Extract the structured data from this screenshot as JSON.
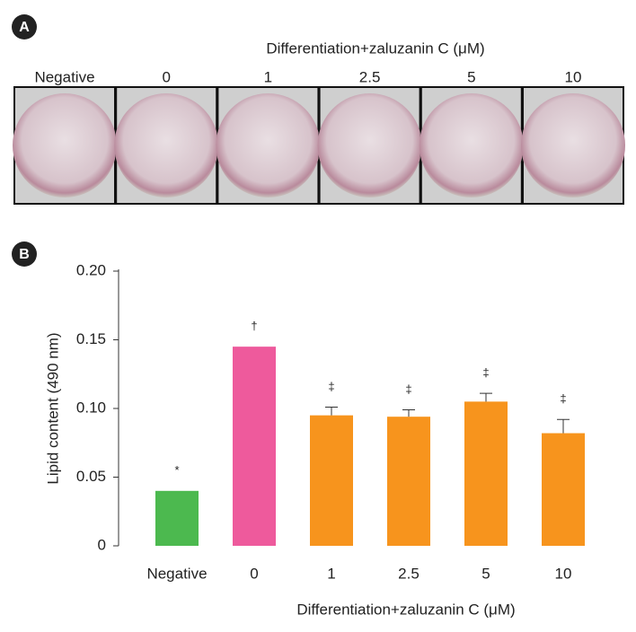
{
  "panel_labels": [
    "A",
    "B"
  ],
  "photos": {
    "header": "Differentiation+zaluzanin C (μM)",
    "labels": [
      "Negative",
      "0",
      "1",
      "2.5",
      "5",
      "10"
    ]
  },
  "chart_data": {
    "type": "bar",
    "categories": [
      "Negative",
      "0",
      "1",
      "2.5",
      "5",
      "10"
    ],
    "values": [
      0.04,
      0.145,
      0.095,
      0.094,
      0.105,
      0.082
    ],
    "errors": [
      null,
      null,
      0.006,
      0.005,
      0.006,
      0.01
    ],
    "markers": [
      "*",
      "†",
      "‡",
      "‡",
      "‡",
      "‡"
    ],
    "colors": [
      "#4cb94f",
      "#ee5a9c",
      "#f7941d",
      "#f7941d",
      "#f7941d",
      "#f7941d"
    ],
    "xlabel": "Differentiation+zaluzanin C (μM)",
    "ylabel": "Lipid content (490 nm)",
    "ylim": [
      0,
      0.2
    ],
    "yticks": [
      0,
      0.05,
      {
        "value": 0.1,
        "label": "0.10"
      },
      0.15,
      {
        "value": 0.2,
        "label": "0.20"
      }
    ]
  }
}
